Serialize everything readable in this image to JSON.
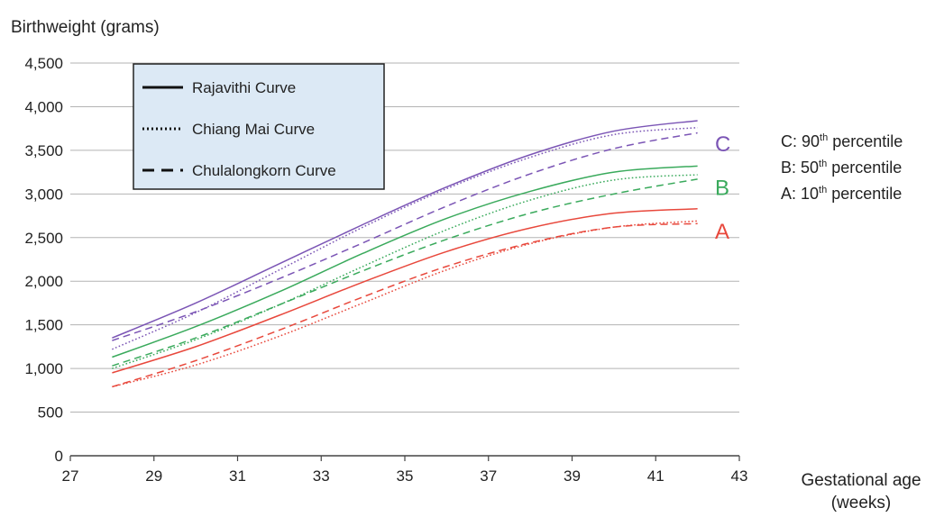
{
  "chart_data": {
    "type": "line",
    "ylabel": "Birthweight (grams)",
    "xlabel_line1": "Gestational age",
    "xlabel_line2": "(weeks)",
    "xlim": [
      27,
      43
    ],
    "ylim": [
      0,
      4500
    ],
    "x_ticks": [
      27,
      29,
      31,
      33,
      35,
      37,
      39,
      41,
      43
    ],
    "y_ticks": [
      0,
      500,
      1000,
      1500,
      2000,
      2500,
      3000,
      3500,
      4000,
      4500
    ],
    "y_tick_labels": [
      "0",
      "500",
      "1,000",
      "1,500",
      "2,000",
      "2,500",
      "3,000",
      "3,500",
      "4,000",
      "4,500"
    ],
    "grid": "horizontal",
    "legend": {
      "placement": "top-left",
      "background": "#dce9f5",
      "entries": [
        {
          "label": "Rajavithi Curve",
          "style": "solid"
        },
        {
          "label": "Chiang Mai Curve",
          "style": "dotted"
        },
        {
          "label": "Chulalongkorn Curve",
          "style": "dashed"
        }
      ]
    },
    "percentile_groups": [
      {
        "letter": "A",
        "label_prefix": "A: 10",
        "label_sup": "th",
        "label_suffix": " percentile",
        "color": "#e8483c",
        "letter_y": 2580
      },
      {
        "letter": "B",
        "label_prefix": "B: 50",
        "label_sup": "th",
        "label_suffix": " percentile",
        "color": "#3aaa5c",
        "letter_y": 3080
      },
      {
        "letter": "C",
        "label_prefix": "C: 90",
        "label_sup": "th",
        "label_suffix": " percentile",
        "color": "#7b55b5",
        "letter_y": 3580
      }
    ],
    "series": [
      {
        "name": "Rajavithi Curve",
        "group": "C",
        "style": "solid",
        "x": [
          28,
          30,
          32,
          34,
          36,
          38,
          40,
          42
        ],
        "values": [
          1350,
          1750,
          2200,
          2650,
          3080,
          3450,
          3720,
          3840
        ]
      },
      {
        "name": "Chiang Mai Curve",
        "group": "C",
        "style": "dotted",
        "x": [
          28,
          30,
          32,
          34,
          36,
          38,
          40,
          42
        ],
        "values": [
          1220,
          1640,
          2130,
          2620,
          3060,
          3420,
          3680,
          3760
        ]
      },
      {
        "name": "Chulalongkorn Curve",
        "group": "C",
        "style": "dashed",
        "x": [
          28,
          30,
          32,
          34,
          36,
          38,
          40,
          42
        ],
        "values": [
          1320,
          1650,
          2030,
          2440,
          2860,
          3230,
          3520,
          3700
        ]
      },
      {
        "name": "Rajavithi Curve",
        "group": "B",
        "style": "solid",
        "x": [
          28,
          30,
          32,
          34,
          36,
          38,
          40,
          42
        ],
        "values": [
          1130,
          1480,
          1880,
          2320,
          2720,
          3030,
          3250,
          3320
        ]
      },
      {
        "name": "Chiang Mai Curve",
        "group": "B",
        "style": "dotted",
        "x": [
          28,
          30,
          32,
          34,
          36,
          38,
          40,
          42
        ],
        "values": [
          1000,
          1330,
          1730,
          2170,
          2590,
          2930,
          3160,
          3220
        ]
      },
      {
        "name": "Chulalongkorn Curve",
        "group": "B",
        "style": "dashed",
        "x": [
          28,
          30,
          32,
          34,
          36,
          38,
          40,
          42
        ],
        "values": [
          1030,
          1350,
          1730,
          2120,
          2480,
          2780,
          3000,
          3170
        ]
      },
      {
        "name": "Rajavithi Curve",
        "group": "A",
        "style": "solid",
        "x": [
          28,
          30,
          32,
          34,
          36,
          38,
          40,
          42
        ],
        "values": [
          950,
          1250,
          1610,
          1990,
          2340,
          2610,
          2780,
          2830
        ]
      },
      {
        "name": "Chiang Mai Curve",
        "group": "A",
        "style": "dotted",
        "x": [
          28,
          30,
          32,
          34,
          36,
          38,
          40,
          42
        ],
        "values": [
          790,
          1040,
          1370,
          1750,
          2130,
          2430,
          2620,
          2690
        ]
      },
      {
        "name": "Chulalongkorn Curve",
        "group": "A",
        "style": "dashed",
        "x": [
          28,
          30,
          32,
          34,
          36,
          38,
          40,
          42
        ],
        "values": [
          790,
          1090,
          1440,
          1820,
          2170,
          2440,
          2620,
          2660
        ]
      }
    ]
  }
}
